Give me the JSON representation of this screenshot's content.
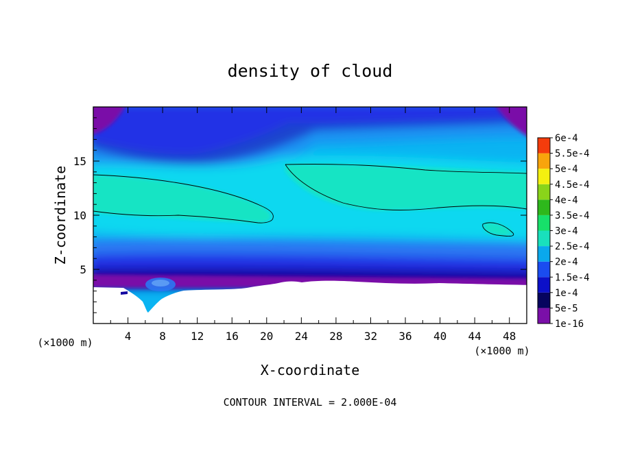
{
  "chart_data": {
    "type": "heatmap",
    "title": "density of cloud",
    "xlabel": "X-coordinate",
    "ylabel": "Z-coordinate",
    "x_unit": "(×1000 m)",
    "footer": "CONTOUR INTERVAL = 2.000E-04",
    "xlim": [
      0,
      50
    ],
    "ylim": [
      0,
      20
    ],
    "xticks": [
      4,
      8,
      12,
      16,
      20,
      24,
      28,
      32,
      36,
      40,
      44,
      48
    ],
    "yticks": [
      5,
      10,
      15
    ],
    "colorbar": {
      "levels": [
        "1e-16",
        "5e-5",
        "1e-4",
        "1.5e-4",
        "2e-4",
        "2.5e-4",
        "3e-4",
        "3.5e-4",
        "4e-4",
        "4.5e-4",
        "5e-4",
        "5.5e-4",
        "6e-4"
      ],
      "colors": [
        "#7a0fa8",
        "#06045e",
        "#0c10c8",
        "#1a4cf0",
        "#0aa8ec",
        "#19e0bc",
        "#17e06a",
        "#2eb81c",
        "#8ad41a",
        "#f4f010",
        "#f8a40c",
        "#f43c0c",
        "#f08c8c"
      ]
    },
    "fill_colors": {
      "purple": "#7a0fa8",
      "navy": "#1206a0",
      "blue": "#2432e6",
      "blue_light": "#2a78f2",
      "cyan": "#0ab4f2",
      "cyan_light": "#10d8f0",
      "teal": "#18e4c4"
    }
  }
}
